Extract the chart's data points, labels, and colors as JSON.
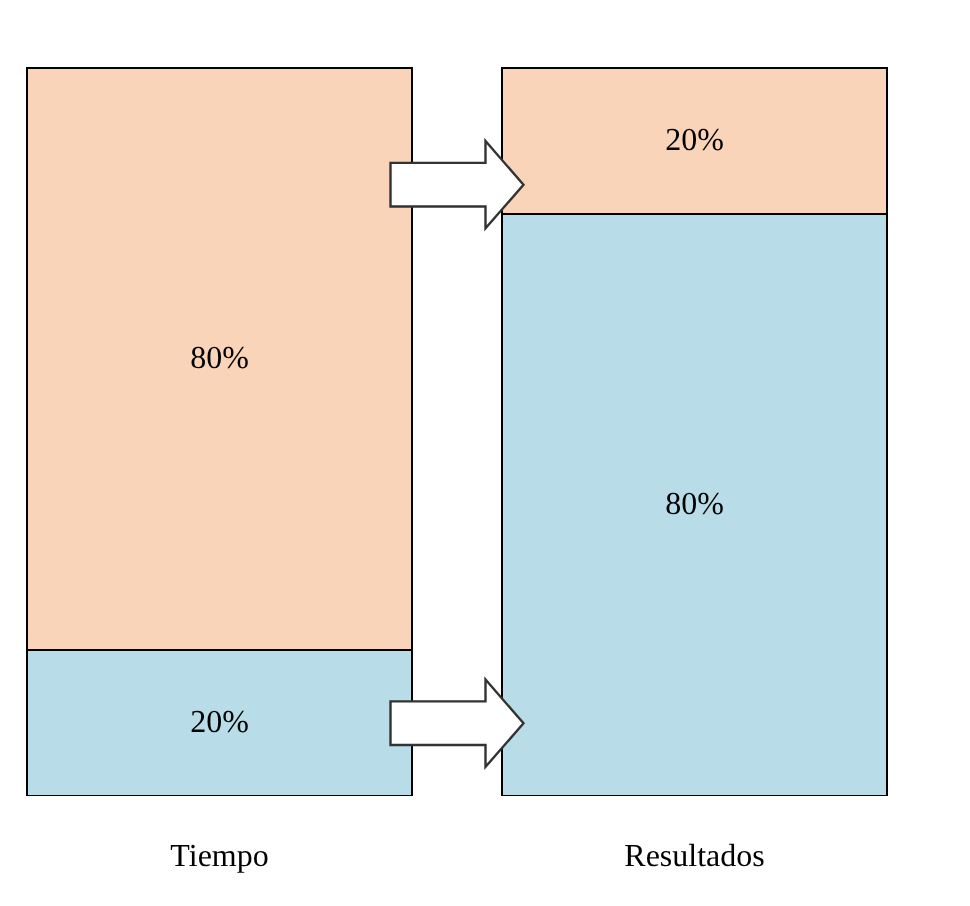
{
  "chart_data": {
    "type": "bar",
    "stacked": true,
    "categories": [
      "Tiempo",
      "Resultados"
    ],
    "series": [
      {
        "color": "#b8dde8",
        "values": [
          20,
          80
        ],
        "value_labels": [
          "20%",
          "80%"
        ]
      },
      {
        "color": "#fad4b8",
        "values": [
          80,
          20
        ],
        "value_labels": [
          "80%",
          "20%"
        ]
      }
    ]
  }
}
